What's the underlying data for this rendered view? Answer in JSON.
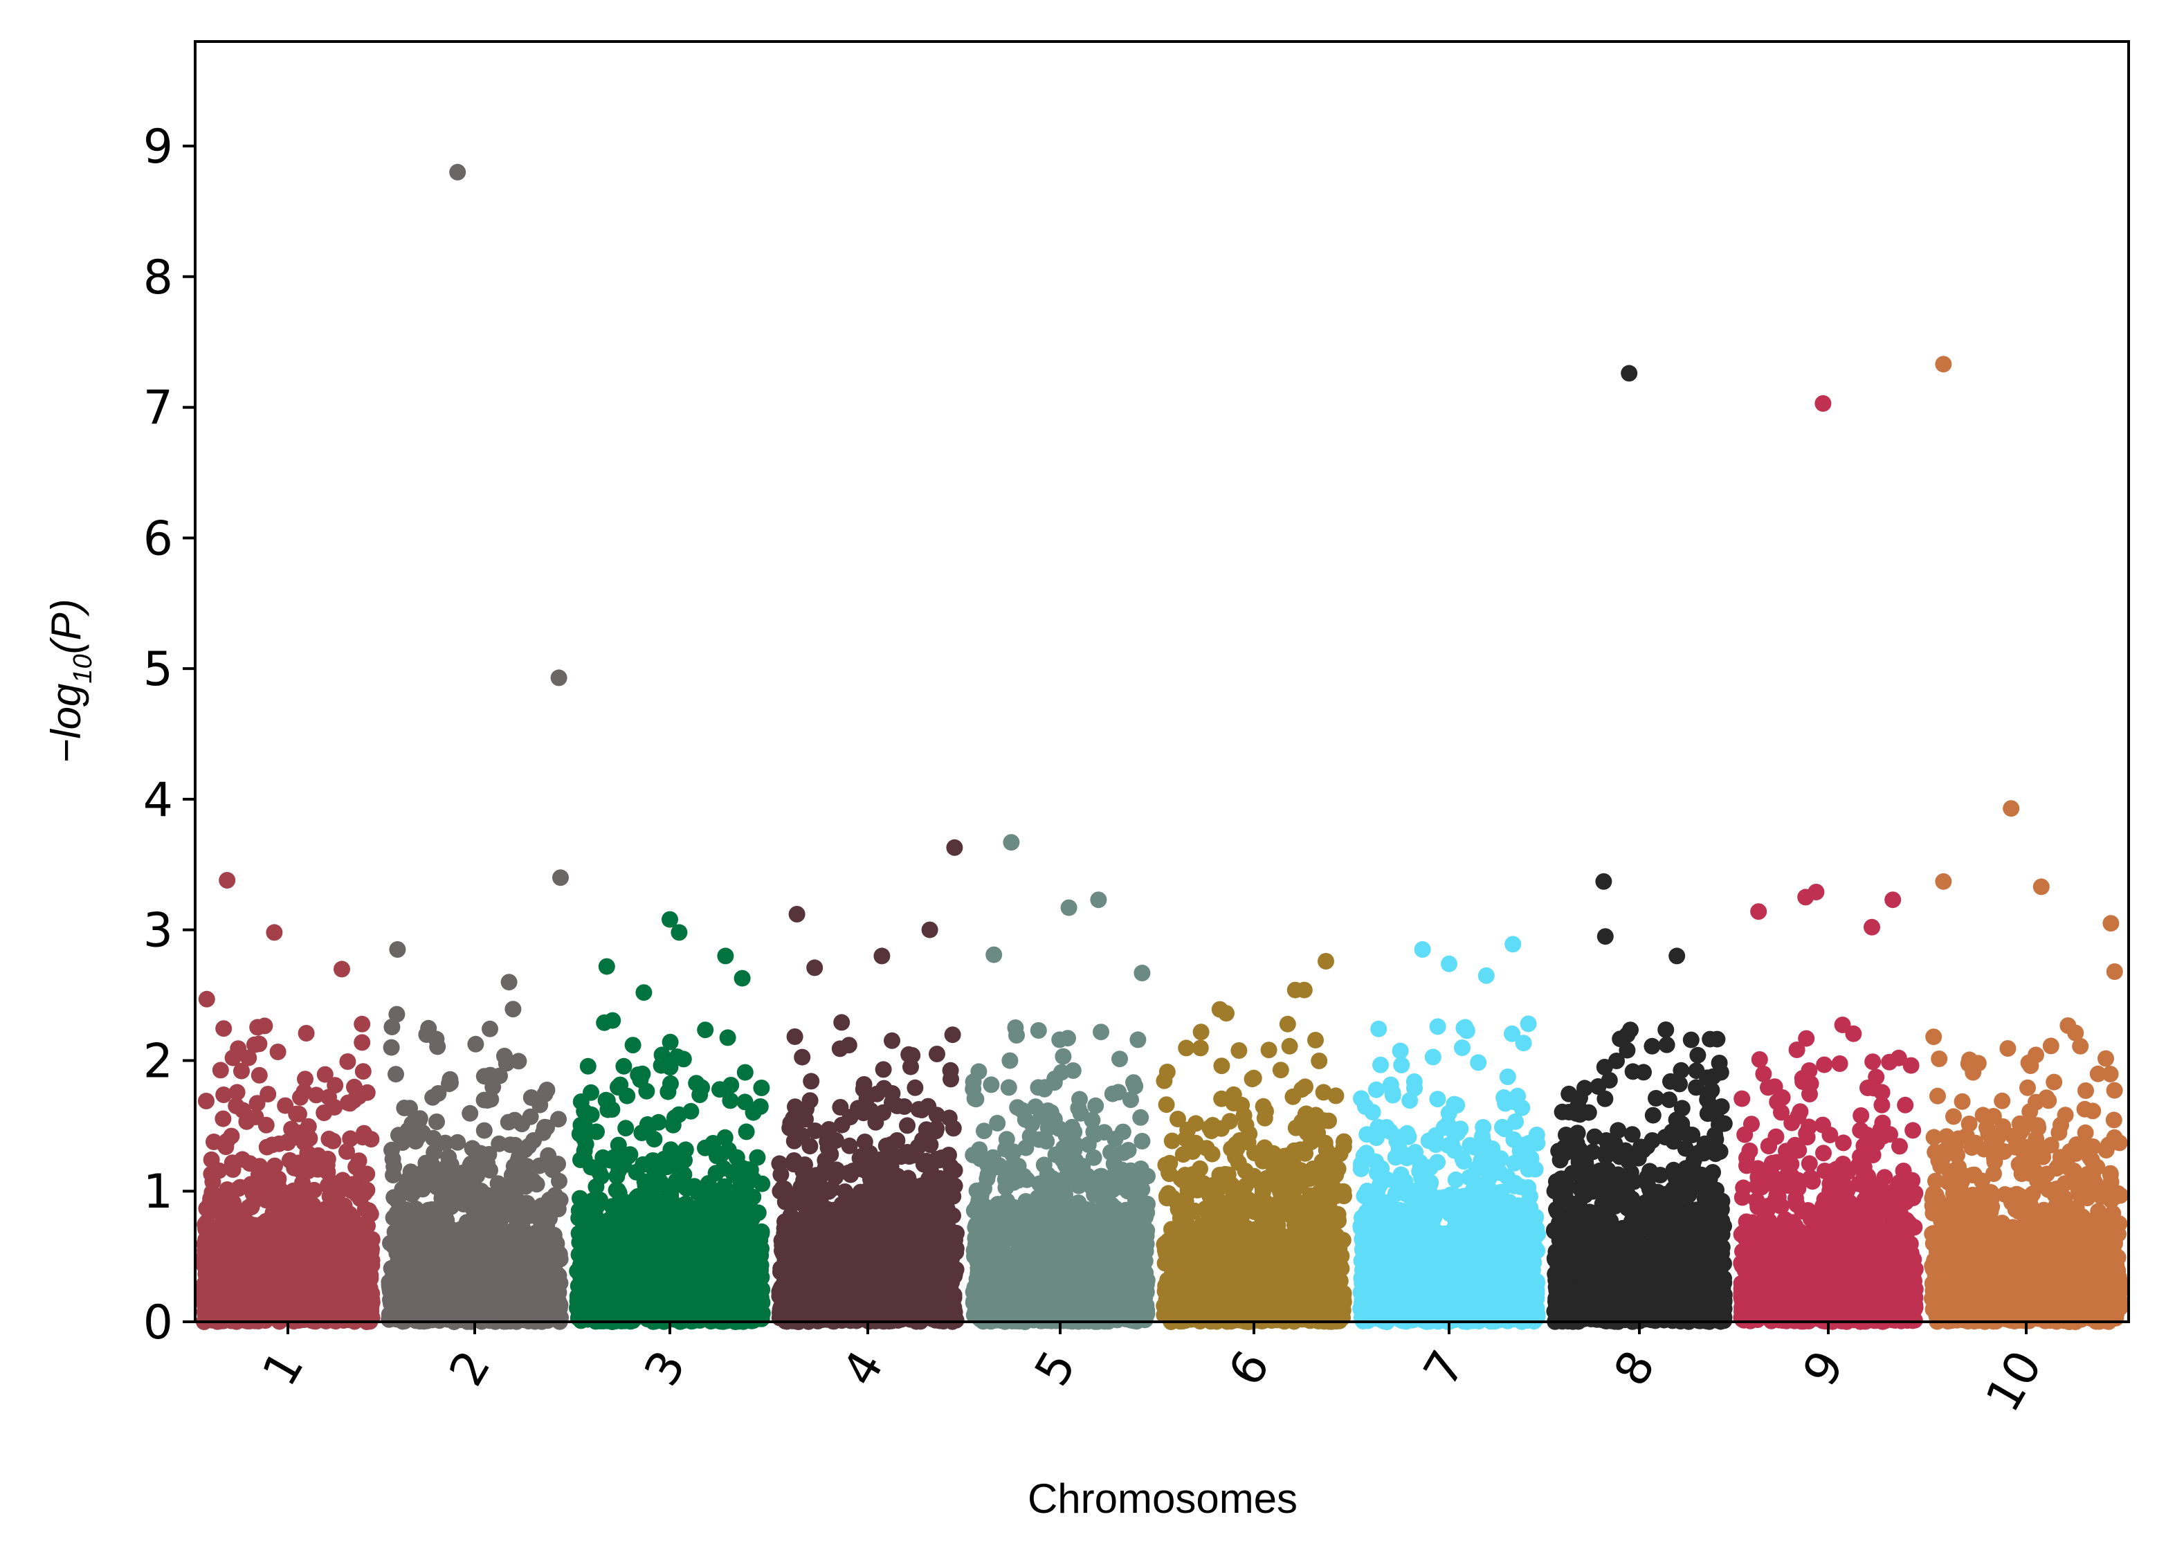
{
  "chart_data": {
    "type": "scatter",
    "subtype": "manhattan",
    "title": "",
    "xlabel": "Chromosomes",
    "ylabel": "-log10(P)",
    "ylabel_parts": {
      "prefix": "−log",
      "sub": "10",
      "suffix": "(P)"
    },
    "ylim": [
      0,
      9.8
    ],
    "yticks": [
      "0",
      "1",
      "2",
      "3",
      "4",
      "5",
      "6",
      "7",
      "8",
      "9"
    ],
    "grid": false,
    "legend": "none",
    "xtick_rotation_deg": -60,
    "chromosomes": [
      {
        "label": "1",
        "color": "#a3404a",
        "top_hits": [
          [
            0.14,
            3.38
          ],
          [
            0.42,
            2.98
          ],
          [
            0.82,
            2.7
          ],
          [
            0.02,
            2.47
          ]
        ]
      },
      {
        "label": "2",
        "color": "#6b6566",
        "top_hits": [
          [
            0.4,
            8.8
          ],
          [
            0.99,
            4.93
          ],
          [
            1.0,
            3.4
          ],
          [
            0.05,
            2.85
          ],
          [
            0.7,
            2.6
          ]
        ]
      },
      {
        "label": "3",
        "color": "#00733f",
        "top_hits": [
          [
            0.5,
            3.08
          ],
          [
            0.55,
            2.98
          ],
          [
            0.8,
            2.8
          ],
          [
            0.16,
            2.72
          ],
          [
            0.89,
            2.63
          ],
          [
            0.36,
            2.52
          ]
        ]
      },
      {
        "label": "4",
        "color": "#56343a",
        "top_hits": [
          [
            0.1,
            3.12
          ],
          [
            0.99,
            3.63
          ],
          [
            0.85,
            3.0
          ],
          [
            0.58,
            2.8
          ],
          [
            0.2,
            2.71
          ]
        ]
      },
      {
        "label": "5",
        "color": "#6b8b82",
        "top_hits": [
          [
            0.22,
            3.67
          ],
          [
            0.55,
            3.17
          ],
          [
            0.72,
            3.23
          ],
          [
            0.12,
            2.81
          ],
          [
            0.97,
            2.67
          ]
        ]
      },
      {
        "label": "6",
        "color": "#a07c2a",
        "top_hits": [
          [
            0.9,
            2.76
          ],
          [
            0.73,
            2.54
          ],
          [
            0.78,
            2.54
          ]
        ]
      },
      {
        "label": "7",
        "color": "#5fdcf8",
        "top_hits": [
          [
            0.86,
            2.89
          ],
          [
            0.35,
            2.85
          ],
          [
            0.5,
            2.74
          ],
          [
            0.71,
            2.65
          ]
        ]
      },
      {
        "label": "8",
        "color": "#272727",
        "top_hits": [
          [
            0.44,
            7.26
          ],
          [
            0.29,
            3.37
          ],
          [
            0.3,
            2.95
          ],
          [
            0.72,
            2.8
          ]
        ]
      },
      {
        "label": "9",
        "color": "#c03050",
        "top_hits": [
          [
            0.47,
            7.03
          ],
          [
            0.43,
            3.29
          ],
          [
            0.87,
            3.23
          ],
          [
            0.1,
            3.14
          ],
          [
            0.37,
            3.25
          ],
          [
            0.75,
            3.02
          ]
        ]
      },
      {
        "label": "10",
        "color": "#c87440",
        "top_hits": [
          [
            0.06,
            7.33
          ],
          [
            0.42,
            3.93
          ],
          [
            0.58,
            3.33
          ],
          [
            0.06,
            3.37
          ],
          [
            0.95,
            3.05
          ],
          [
            0.97,
            2.68
          ]
        ]
      }
    ]
  }
}
